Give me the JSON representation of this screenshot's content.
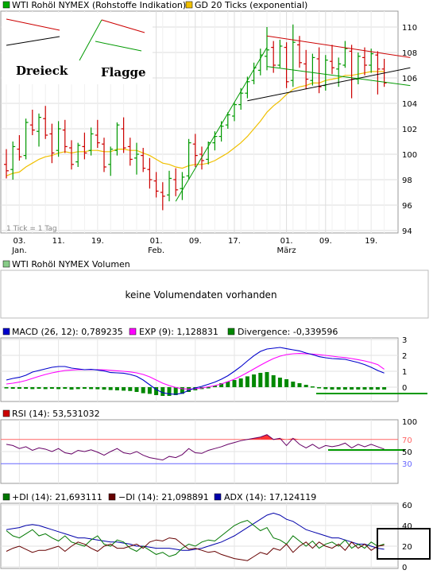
{
  "chart_data": [
    {
      "type": "ohlc",
      "title": "WTI Rohöl NYMEX (Rohstoffe Indikation)",
      "overlay_label": "GD 20 Ticks (exponential)",
      "tick_note": "1 Tick = 1 Tag",
      "ylim": [
        94,
        111
      ],
      "y_ticks": [
        94,
        96,
        98,
        100,
        102,
        104,
        106,
        108,
        110
      ],
      "x_ticks": [
        "03.",
        "11.",
        "19.",
        "01.",
        "09.",
        "17.",
        "01.",
        "09.",
        "19."
      ],
      "x_ticks_sub": [
        "Jan.",
        "",
        "",
        "Feb.",
        "",
        "",
        "März",
        "",
        ""
      ],
      "x_tick_index": [
        2,
        8,
        14,
        23,
        29,
        35,
        43,
        49,
        56
      ],
      "annotations": [
        "Dreieck",
        "Flagge"
      ],
      "colors": {
        "up": "#009900",
        "down": "#cc0000",
        "ema": "#f0c000",
        "resistance": "#cc0000",
        "support": "#000000",
        "trend": "#009900"
      },
      "ohlc": [
        [
          99.2,
          100.4,
          98.1,
          98.7
        ],
        [
          98.8,
          101.0,
          98.0,
          100.6
        ],
        [
          100.4,
          101.5,
          99.5,
          99.8
        ],
        [
          99.9,
          102.8,
          99.6,
          102.5
        ],
        [
          102.3,
          103.5,
          101.5,
          101.9
        ],
        [
          101.8,
          103.2,
          100.6,
          102.9
        ],
        [
          102.8,
          103.8,
          101.2,
          101.5
        ],
        [
          101.6,
          102.4,
          99.3,
          100.1
        ],
        [
          100.3,
          102.6,
          99.8,
          102.0
        ],
        [
          101.9,
          102.7,
          100.1,
          100.6
        ],
        [
          100.5,
          101.1,
          98.8,
          99.2
        ],
        [
          99.4,
          100.9,
          99.0,
          100.7
        ],
        [
          100.6,
          101.7,
          99.6,
          100.1
        ],
        [
          100.3,
          102.1,
          99.9,
          101.6
        ],
        [
          101.5,
          102.7,
          100.5,
          100.9
        ],
        [
          100.8,
          101.3,
          98.6,
          99.0
        ],
        [
          99.2,
          100.6,
          98.3,
          100.4
        ],
        [
          100.3,
          102.5,
          99.9,
          102.3
        ],
        [
          102.0,
          102.9,
          100.1,
          100.5
        ],
        [
          100.6,
          101.3,
          99.1,
          99.6
        ],
        [
          99.7,
          100.9,
          98.4,
          100.0
        ],
        [
          99.9,
          100.5,
          98.6,
          98.9
        ],
        [
          98.8,
          99.7,
          97.3,
          98.0
        ],
        [
          97.9,
          98.6,
          96.6,
          97.1
        ],
        [
          97.0,
          97.8,
          95.6,
          96.7
        ],
        [
          96.8,
          98.7,
          96.3,
          98.1
        ],
        [
          98.0,
          98.9,
          96.7,
          97.2
        ],
        [
          97.3,
          98.6,
          96.4,
          98.2
        ],
        [
          98.3,
          101.2,
          98.0,
          100.9
        ],
        [
          100.8,
          101.6,
          99.0,
          99.9
        ],
        [
          100.0,
          100.6,
          98.8,
          99.5
        ],
        [
          99.6,
          101.0,
          99.2,
          100.9
        ],
        [
          100.9,
          101.8,
          100.3,
          101.4
        ],
        [
          101.4,
          102.6,
          101.0,
          102.2
        ],
        [
          102.3,
          103.3,
          102.0,
          103.1
        ],
        [
          103.0,
          104.1,
          102.6,
          103.9
        ],
        [
          103.9,
          105.2,
          103.5,
          104.8
        ],
        [
          104.8,
          106.1,
          104.4,
          105.7
        ],
        [
          105.8,
          107.2,
          105.5,
          106.8
        ],
        [
          106.6,
          108.3,
          106.2,
          107.8
        ],
        [
          107.7,
          110.0,
          106.6,
          108.2
        ],
        [
          108.4,
          108.9,
          106.4,
          107.0
        ],
        [
          107.0,
          109.0,
          106.8,
          108.5
        ],
        [
          108.4,
          108.8,
          105.2,
          105.7
        ],
        [
          105.8,
          110.2,
          105.3,
          108.8
        ],
        [
          108.6,
          109.3,
          106.8,
          107.2
        ],
        [
          107.1,
          108.2,
          105.1,
          105.9
        ],
        [
          105.8,
          107.9,
          105.4,
          107.6
        ],
        [
          107.5,
          108.4,
          104.8,
          105.3
        ],
        [
          105.4,
          107.8,
          105.0,
          107.4
        ],
        [
          107.3,
          108.6,
          106.3,
          106.8
        ],
        [
          106.7,
          107.6,
          105.3,
          107.1
        ],
        [
          107.0,
          108.9,
          106.8,
          108.3
        ],
        [
          108.1,
          108.6,
          104.4,
          105.9
        ],
        [
          105.9,
          108.0,
          105.5,
          107.7
        ],
        [
          107.6,
          108.4,
          106.2,
          107.0
        ],
        [
          107.0,
          108.3,
          106.4,
          107.9
        ],
        [
          107.8,
          108.1,
          104.7,
          106.7
        ],
        [
          106.7,
          107.5,
          105.3,
          105.6
        ]
      ],
      "ema": [
        98.3,
        98.5,
        98.6,
        99.0,
        99.3,
        99.6,
        99.8,
        99.9,
        100.1,
        100.2,
        100.1,
        100.2,
        100.2,
        100.3,
        100.3,
        100.2,
        100.2,
        100.4,
        100.4,
        100.3,
        100.3,
        100.1,
        99.9,
        99.6,
        99.3,
        99.2,
        99.0,
        98.9,
        99.1,
        99.2,
        99.2,
        99.3,
        99.5,
        99.8,
        100.1,
        100.5,
        100.9,
        101.4,
        102.0,
        102.6,
        103.3,
        103.8,
        104.2,
        104.7,
        105.1,
        105.3,
        105.4,
        105.6,
        105.6,
        105.8,
        105.9,
        106.0,
        106.2,
        106.2,
        106.3,
        106.4,
        106.5,
        106.5,
        106.5
      ],
      "trendlines": [
        {
          "name": "triangle-resistance",
          "color": "#cc0000",
          "x1": 40,
          "y1": 109.3,
          "x2": 62,
          "y2": 107.6
        },
        {
          "name": "triangle-support",
          "color": "#000000",
          "x1": 37,
          "y1": 104.2,
          "x2": 62,
          "y2": 106.8
        },
        {
          "name": "uptrend",
          "color": "#009900",
          "x1": 26,
          "y1": 96.3,
          "x2": 40,
          "y2": 108.4
        },
        {
          "name": "flag-lower",
          "color": "#009900",
          "x1": 40,
          "y1": 106.9,
          "x2": 62,
          "y2": 105.4
        }
      ]
    },
    {
      "type": "volume",
      "title": "WTI Rohöl NYMEX Volumen",
      "message": "keine Volumendaten vorhanden"
    },
    {
      "type": "macd",
      "legend": [
        "MACD (26, 12): 0,789235",
        "EXP (9): 1,128831",
        "Divergence: -0,339596"
      ],
      "colors": {
        "macd": "#0000cc",
        "signal": "#ff00ff",
        "hist": "#008800"
      },
      "ylim": [
        -0.8,
        3.0
      ],
      "y_ticks": [
        0,
        1,
        2,
        3
      ],
      "macd": [
        0.45,
        0.55,
        0.62,
        0.75,
        0.95,
        1.05,
        1.15,
        1.25,
        1.3,
        1.3,
        1.2,
        1.15,
        1.1,
        1.12,
        1.08,
        1.02,
        0.92,
        0.9,
        0.88,
        0.8,
        0.68,
        0.45,
        0.15,
        -0.15,
        -0.35,
        -0.42,
        -0.45,
        -0.38,
        -0.2,
        -0.05,
        0.05,
        0.18,
        0.32,
        0.5,
        0.72,
        1.0,
        1.3,
        1.65,
        1.98,
        2.25,
        2.4,
        2.45,
        2.5,
        2.42,
        2.35,
        2.28,
        2.15,
        2.05,
        1.92,
        1.85,
        1.8,
        1.78,
        1.75,
        1.65,
        1.55,
        1.42,
        1.25,
        1.05,
        0.89
      ],
      "signal": [
        0.2,
        0.25,
        0.32,
        0.42,
        0.55,
        0.68,
        0.8,
        0.9,
        0.98,
        1.05,
        1.08,
        1.1,
        1.1,
        1.1,
        1.1,
        1.09,
        1.06,
        1.03,
        1.0,
        0.96,
        0.9,
        0.8,
        0.65,
        0.45,
        0.25,
        0.1,
        -0.02,
        -0.1,
        -0.12,
        -0.1,
        -0.05,
        0.02,
        0.1,
        0.2,
        0.35,
        0.5,
        0.7,
        0.92,
        1.15,
        1.38,
        1.6,
        1.8,
        1.95,
        2.05,
        2.1,
        2.12,
        2.1,
        2.08,
        2.04,
        2.0,
        1.95,
        1.9,
        1.86,
        1.8,
        1.73,
        1.65,
        1.55,
        1.42,
        1.13
      ],
      "hist": [
        -0.08,
        -0.1,
        -0.1,
        -0.1,
        -0.12,
        -0.1,
        -0.12,
        -0.1,
        -0.12,
        -0.1,
        -0.15,
        -0.12,
        -0.1,
        -0.12,
        -0.13,
        -0.15,
        -0.18,
        -0.2,
        -0.22,
        -0.24,
        -0.3,
        -0.38,
        -0.42,
        -0.5,
        -0.55,
        -0.55,
        -0.5,
        -0.42,
        -0.3,
        -0.2,
        -0.12,
        -0.05,
        0.1,
        0.25,
        0.35,
        0.45,
        0.55,
        0.68,
        0.8,
        0.9,
        0.95,
        0.75,
        0.6,
        0.5,
        0.35,
        0.25,
        0.15,
        0.05,
        -0.05,
        -0.12,
        -0.15,
        -0.15,
        -0.15,
        -0.15,
        -0.15,
        -0.15,
        -0.15,
        -0.15,
        -0.15
      ],
      "hline": {
        "color": "#009900",
        "from": 50,
        "to": 60,
        "y": -0.4
      }
    },
    {
      "type": "rsi",
      "legend": [
        "RSI (14): 53,531032"
      ],
      "ylim": [
        0,
        100
      ],
      "y_ticks": [
        30,
        50,
        70,
        100
      ],
      "levels": {
        "upper": 70,
        "lower": 30
      },
      "rsi": [
        62,
        60,
        55,
        58,
        52,
        56,
        54,
        50,
        55,
        48,
        46,
        52,
        50,
        53,
        49,
        44,
        50,
        55,
        48,
        46,
        50,
        44,
        40,
        38,
        36,
        42,
        40,
        45,
        55,
        48,
        47,
        52,
        55,
        58,
        62,
        65,
        68,
        70,
        72,
        74,
        78,
        70,
        72,
        60,
        72,
        62,
        56,
        62,
        55,
        60,
        58,
        60,
        64,
        56,
        62,
        58,
        62,
        58,
        54
      ],
      "hline": {
        "color": "#009900",
        "from": 50,
        "to": 60,
        "y": 50
      }
    },
    {
      "type": "dmi",
      "legend": [
        "+DI (14): 21,693111",
        "−DI (14): 21,098891",
        "ADX (14): 17,124119"
      ],
      "colors": {
        "plus": "#007700",
        "minus": "#660000",
        "adx": "#0000aa"
      },
      "ylim": [
        0,
        60
      ],
      "y_ticks": [
        0,
        20,
        40,
        60
      ],
      "plus_di": [
        35,
        30,
        28,
        32,
        36,
        30,
        32,
        28,
        25,
        30,
        24,
        22,
        20,
        26,
        30,
        22,
        20,
        26,
        24,
        18,
        15,
        20,
        16,
        12,
        14,
        10,
        12,
        18,
        22,
        20,
        24,
        26,
        25,
        30,
        35,
        40,
        43,
        45,
        40,
        35,
        38,
        28,
        26,
        22,
        30,
        25,
        20,
        25,
        18,
        22,
        24,
        20,
        26,
        18,
        22,
        18,
        24,
        20,
        22
      ],
      "minus_di": [
        15,
        18,
        20,
        17,
        14,
        16,
        16,
        18,
        20,
        15,
        20,
        24,
        22,
        18,
        15,
        20,
        22,
        18,
        18,
        20,
        22,
        18,
        24,
        26,
        25,
        28,
        27,
        22,
        17,
        18,
        16,
        14,
        15,
        12,
        10,
        8,
        7,
        6,
        10,
        14,
        12,
        18,
        16,
        22,
        14,
        20,
        24,
        18,
        24,
        20,
        18,
        22,
        16,
        24,
        18,
        22,
        16,
        20,
        21
      ],
      "adx": [
        36,
        37,
        38,
        40,
        41,
        40,
        38,
        36,
        34,
        32,
        30,
        28,
        28,
        27,
        26,
        25,
        24,
        24,
        23,
        22,
        20,
        20,
        19,
        18,
        18,
        18,
        17,
        16,
        16,
        17,
        18,
        20,
        22,
        24,
        27,
        30,
        34,
        38,
        42,
        46,
        50,
        52,
        50,
        46,
        44,
        40,
        36,
        34,
        32,
        30,
        28,
        28,
        26,
        24,
        22,
        22,
        20,
        18,
        17
      ]
    }
  ]
}
